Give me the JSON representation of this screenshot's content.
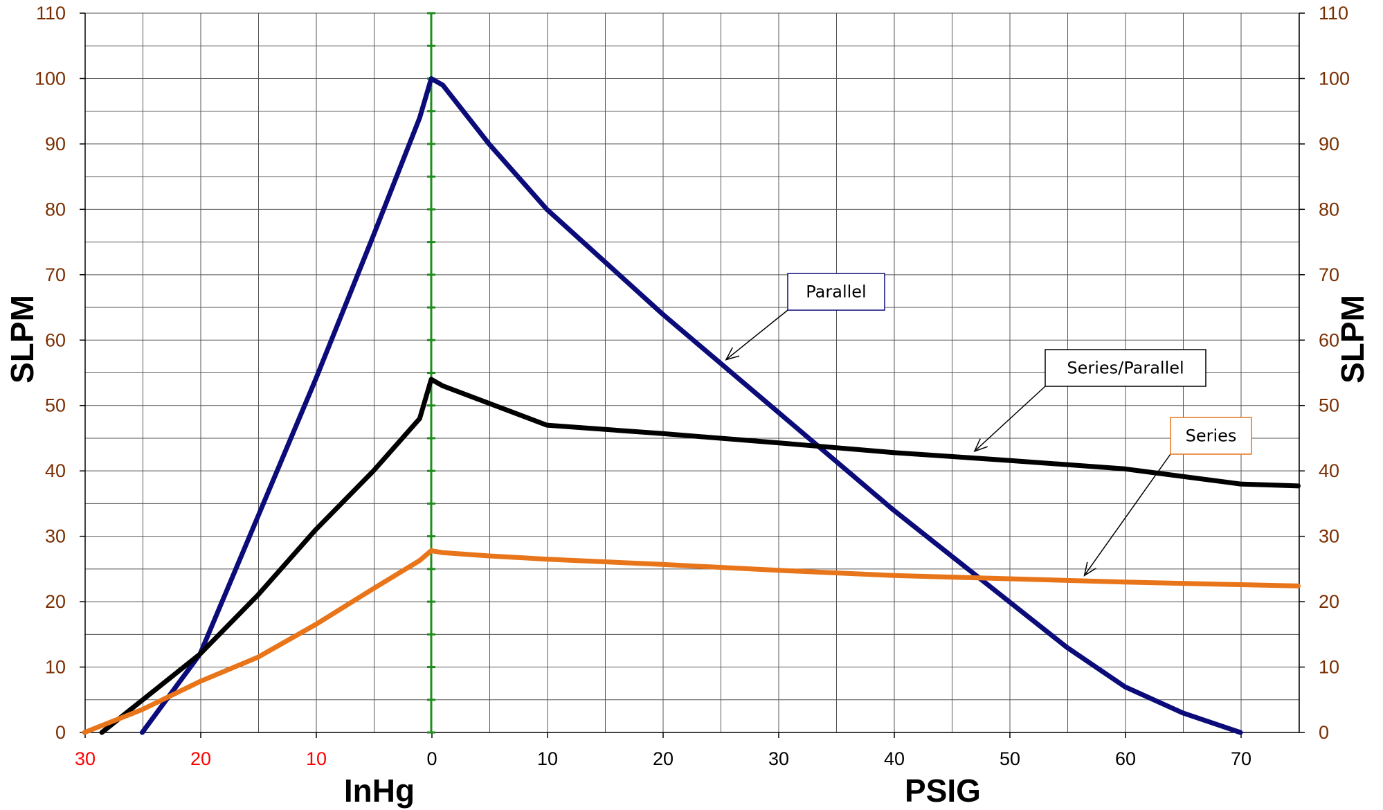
{
  "colors": {
    "parallel": "#0b0b7a",
    "series_parallel": "#000000",
    "series": "#e8751a",
    "vacuum_tick": "#ff0000",
    "pressure_tick": "#7a2e00",
    "zero_line": "#1e8c1e",
    "grid": "#555555"
  },
  "chart_data": {
    "type": "line",
    "xlabel_left": "InHg",
    "xlabel_right": "PSIG",
    "ylabel_left": "SLPM",
    "ylabel_right": "SLPM",
    "ylim": [
      0,
      110
    ],
    "x_ticks": [
      {
        "label": "30",
        "kind": "vacuum"
      },
      {
        "label": "20",
        "kind": "vacuum"
      },
      {
        "label": "10",
        "kind": "vacuum"
      },
      {
        "label": "0",
        "kind": "pressure"
      },
      {
        "label": "10",
        "kind": "pressure"
      },
      {
        "label": "20",
        "kind": "pressure"
      },
      {
        "label": "30",
        "kind": "pressure"
      },
      {
        "label": "40",
        "kind": "pressure"
      },
      {
        "label": "50",
        "kind": "pressure"
      },
      {
        "label": "60",
        "kind": "pressure"
      },
      {
        "label": "70",
        "kind": "pressure"
      }
    ],
    "y_ticks": [
      "0",
      "10",
      "20",
      "30",
      "40",
      "50",
      "60",
      "70",
      "80",
      "90",
      "100",
      "110"
    ],
    "grid": true,
    "series": [
      {
        "name": "Parallel",
        "color_key": "parallel",
        "points": [
          {
            "unit": "InHg",
            "x": 25,
            "y": 0
          },
          {
            "unit": "InHg",
            "x": 20,
            "y": 12
          },
          {
            "unit": "InHg",
            "x": 15,
            "y": 33
          },
          {
            "unit": "InHg",
            "x": 10,
            "y": 54
          },
          {
            "unit": "InHg",
            "x": 5,
            "y": 76
          },
          {
            "unit": "InHg",
            "x": 1,
            "y": 94
          },
          {
            "unit": "PSIG",
            "x": 0,
            "y": 100
          },
          {
            "unit": "PSIG",
            "x": 1,
            "y": 99
          },
          {
            "unit": "PSIG",
            "x": 5,
            "y": 90
          },
          {
            "unit": "PSIG",
            "x": 10,
            "y": 80
          },
          {
            "unit": "PSIG",
            "x": 15,
            "y": 72
          },
          {
            "unit": "PSIG",
            "x": 20,
            "y": 64
          },
          {
            "unit": "PSIG",
            "x": 30,
            "y": 49
          },
          {
            "unit": "PSIG",
            "x": 40,
            "y": 34
          },
          {
            "unit": "PSIG",
            "x": 50,
            "y": 20
          },
          {
            "unit": "PSIG",
            "x": 55,
            "y": 13
          },
          {
            "unit": "PSIG",
            "x": 60,
            "y": 7
          },
          {
            "unit": "PSIG",
            "x": 65,
            "y": 3
          },
          {
            "unit": "PSIG",
            "x": 70,
            "y": 0
          }
        ]
      },
      {
        "name": "Series/Parallel",
        "color_key": "series_parallel",
        "points": [
          {
            "unit": "InHg",
            "x": 28.5,
            "y": 0
          },
          {
            "unit": "InHg",
            "x": 20,
            "y": 12
          },
          {
            "unit": "InHg",
            "x": 15,
            "y": 21
          },
          {
            "unit": "InHg",
            "x": 10,
            "y": 31
          },
          {
            "unit": "InHg",
            "x": 5,
            "y": 40
          },
          {
            "unit": "InHg",
            "x": 1,
            "y": 48
          },
          {
            "unit": "PSIG",
            "x": 0,
            "y": 54
          },
          {
            "unit": "PSIG",
            "x": 1,
            "y": 53
          },
          {
            "unit": "PSIG",
            "x": 10,
            "y": 47
          },
          {
            "unit": "PSIG",
            "x": 20,
            "y": 45.7
          },
          {
            "unit": "PSIG",
            "x": 30,
            "y": 44.3
          },
          {
            "unit": "PSIG",
            "x": 40,
            "y": 42.8
          },
          {
            "unit": "PSIG",
            "x": 50,
            "y": 41.6
          },
          {
            "unit": "PSIG",
            "x": 60,
            "y": 40.3
          },
          {
            "unit": "PSIG",
            "x": 70,
            "y": 38
          },
          {
            "unit": "PSIG",
            "x": 75,
            "y": 37.7
          }
        ]
      },
      {
        "name": "Series",
        "color_key": "series",
        "points": [
          {
            "unit": "InHg",
            "x": 30,
            "y": 0
          },
          {
            "unit": "InHg",
            "x": 25,
            "y": 3.5
          },
          {
            "unit": "InHg",
            "x": 20,
            "y": 7.8
          },
          {
            "unit": "InHg",
            "x": 15,
            "y": 11.5
          },
          {
            "unit": "InHg",
            "x": 10,
            "y": 16.5
          },
          {
            "unit": "InHg",
            "x": 5,
            "y": 22
          },
          {
            "unit": "InHg",
            "x": 1,
            "y": 26.3
          },
          {
            "unit": "PSIG",
            "x": 0,
            "y": 27.8
          },
          {
            "unit": "PSIG",
            "x": 1,
            "y": 27.5
          },
          {
            "unit": "PSIG",
            "x": 5,
            "y": 27
          },
          {
            "unit": "PSIG",
            "x": 10,
            "y": 26.5
          },
          {
            "unit": "PSIG",
            "x": 20,
            "y": 25.7
          },
          {
            "unit": "PSIG",
            "x": 30,
            "y": 24.8
          },
          {
            "unit": "PSIG",
            "x": 40,
            "y": 24
          },
          {
            "unit": "PSIG",
            "x": 50,
            "y": 23.5
          },
          {
            "unit": "PSIG",
            "x": 60,
            "y": 23
          },
          {
            "unit": "PSIG",
            "x": 70,
            "y": 22.6
          },
          {
            "unit": "PSIG",
            "x": 75,
            "y": 22.4
          }
        ]
      }
    ],
    "annotations": [
      {
        "text": "Parallel",
        "series": "Parallel",
        "border_key": "parallel",
        "target": {
          "unit": "PSIG",
          "x": 25.5,
          "y": 57
        }
      },
      {
        "text": "Series/Parallel",
        "series": "Series/Parallel",
        "border_key": "series_parallel",
        "target": {
          "unit": "PSIG",
          "x": 47,
          "y": 43
        }
      },
      {
        "text": "Series",
        "series": "Series",
        "border_key": "series",
        "target": {
          "unit": "PSIG",
          "x": 56.5,
          "y": 24
        }
      }
    ]
  }
}
